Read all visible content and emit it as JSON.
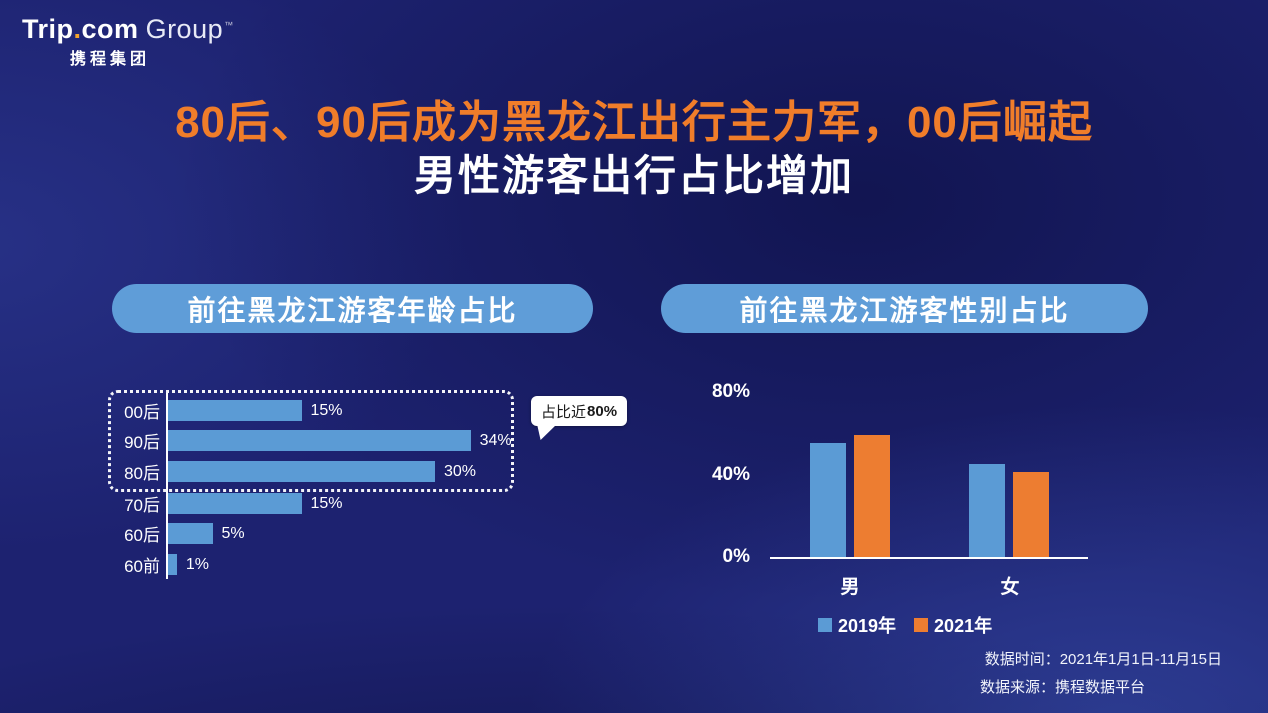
{
  "colors": {
    "background": "#1D2270",
    "title_orange": "#F07D2A",
    "pill_blue": "#5F9DD8",
    "bar_blue": "#5B9BD5",
    "bar_orange": "#ED7D31",
    "logo_dot": "#F5A52B"
  },
  "logo": {
    "trip": "Trip",
    "dot": ".",
    "com": "com",
    "group": "Group",
    "mark": "™",
    "cn": "携程集团"
  },
  "title": {
    "line1": "80后、90后成为黑龙江出行主力军，00后崛起",
    "line2": "男性游客出行占比增加"
  },
  "chart_data": [
    {
      "type": "bar",
      "orientation": "horizontal",
      "title": "前往黑龙江游客年龄占比",
      "categories": [
        "00后",
        "90后",
        "80后",
        "70后",
        "60后",
        "60前"
      ],
      "values": [
        15,
        34,
        30,
        15,
        5,
        1
      ],
      "labels": [
        "15%",
        "34%",
        "30%",
        "15%",
        "5%",
        "1%"
      ],
      "xlim": [
        0,
        40
      ],
      "bar_color": "#5B9BD5",
      "annotation": {
        "prefix": "占比近",
        "strong": "80%",
        "applies_to": [
          "00后",
          "90后",
          "80后"
        ]
      }
    },
    {
      "type": "bar",
      "orientation": "vertical",
      "title": "前往黑龙江游客性别占比",
      "categories": [
        "男",
        "女"
      ],
      "series": [
        {
          "name": "2019年",
          "color": "#5B9BD5",
          "values": [
            55,
            45
          ]
        },
        {
          "name": "2021年",
          "color": "#ED7D31",
          "values": [
            59,
            41
          ]
        }
      ],
      "yticks": [
        "80%",
        "40%",
        "0%"
      ],
      "ylim": [
        0,
        80
      ],
      "grid": false,
      "legend_position": "bottom"
    }
  ],
  "footer": {
    "time": "数据时间：2021年1月1日-11月15日",
    "source": "数据来源：携程数据平台"
  }
}
